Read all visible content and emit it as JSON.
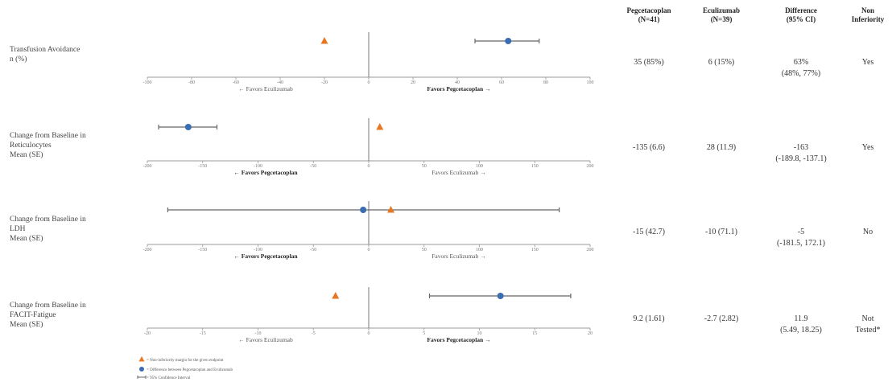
{
  "table": {
    "headers": [
      {
        "key": "peg",
        "text": "Pegcetacoplan\n(N=41)"
      },
      {
        "key": "ecu",
        "text": "Eculizumab\n(N=39)"
      },
      {
        "key": "diff",
        "text": "Difference\n(95% CI)"
      },
      {
        "key": "ni",
        "text": "Non\nInferiority"
      }
    ],
    "rows": [
      {
        "peg": "35 (85%)",
        "ecu": "6 (15%)",
        "diff": "63%\n(48%, 77%)",
        "ni": "Yes"
      },
      {
        "peg": "-135 (6.6)",
        "ecu": "28 (11.9)",
        "diff": "-163\n(-189.8, -137.1)",
        "ni": "Yes"
      },
      {
        "peg": "-15 (42.7)",
        "ecu": "-10 (71.1)",
        "diff": "-5\n(-181.5, 172.1)",
        "ni": "No"
      },
      {
        "peg": "9.2 (1.61)",
        "ecu": "-2.7 (2.82)",
        "diff": "11.9\n(5.49, 18.25)",
        "ni": "Not\nTested*"
      }
    ]
  },
  "legend": {
    "triangle_text": "= Non-inferiority margin for the given endpoint",
    "circle_text": "= Difference between Pegcetacoplan and Eculizumab",
    "ci_text": "= 95% Confidence Interval"
  },
  "colors": {
    "triangle": "#e87722",
    "circle": "#3b6db3",
    "ci": "#666666",
    "axis": "#999999"
  },
  "chart_data": [
    {
      "type": "forest",
      "label": "Transfusion Avoidance\nn (%)",
      "xlim": [
        -100,
        100
      ],
      "ticks": [
        -100,
        -80,
        -60,
        -40,
        -20,
        0,
        20,
        40,
        60,
        80,
        100
      ],
      "margin": -20,
      "estimate": 63,
      "ci": [
        48,
        77
      ],
      "left_text": "← Favors Eculizumab",
      "right_text": "Favors Pegcetacoplan →",
      "bold_side": "right"
    },
    {
      "type": "forest",
      "label": "Change from Baseline in\nReticulocytes\nMean (SE)",
      "xlim": [
        -200,
        200
      ],
      "ticks": [
        -200,
        -150,
        -100,
        -50,
        0,
        50,
        100,
        150,
        200
      ],
      "margin": 10,
      "estimate": -163,
      "ci": [
        -189.8,
        -137.1
      ],
      "left_text": "← Favors Pegcetacoplan",
      "right_text": "Favors Eculizumab →",
      "bold_side": "left"
    },
    {
      "type": "forest",
      "label": "Change from Baseline in\nLDH\nMean (SE)",
      "xlim": [
        -200,
        200
      ],
      "ticks": [
        -200,
        -150,
        -100,
        -50,
        0,
        50,
        100,
        150,
        200
      ],
      "margin": 20,
      "estimate": -5,
      "ci": [
        -181.5,
        172.1
      ],
      "left_text": "← Favors Pegcetacoplan",
      "right_text": "Favors Eculizumab →",
      "bold_side": "left"
    },
    {
      "type": "forest",
      "label": "Change from Baseline in\nFACIT-Fatigue\nMean (SE)",
      "xlim": [
        -20,
        20
      ],
      "ticks": [
        -20,
        -15,
        -10,
        -5,
        0,
        5,
        10,
        15,
        20
      ],
      "margin": -3,
      "estimate": 11.9,
      "ci": [
        5.49,
        18.25
      ],
      "left_text": "← Favors Eculizumab",
      "right_text": "Favors Pegcetacoplan →",
      "bold_side": "right"
    }
  ]
}
